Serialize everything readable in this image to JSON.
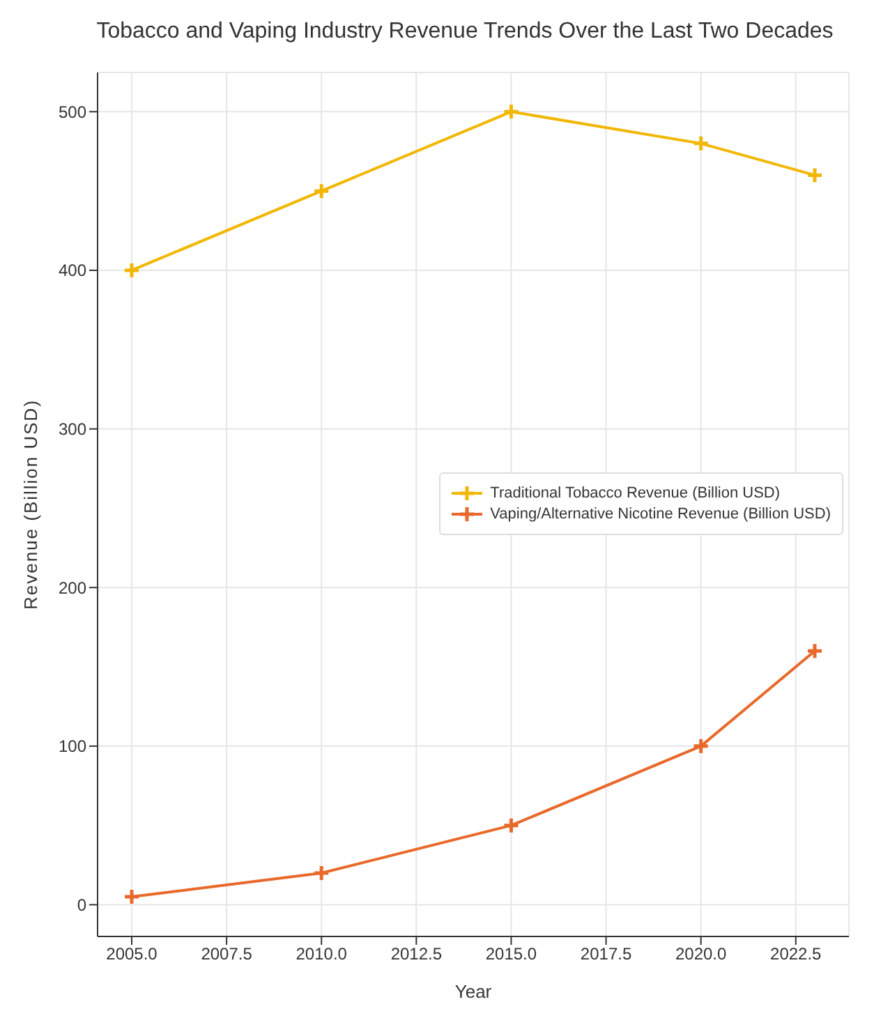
{
  "chart_data": {
    "type": "line",
    "title": "Tobacco and Vaping Industry Revenue Trends Over the Last Two Decades",
    "xlabel": "Year",
    "ylabel": "Revenue (Billion USD)",
    "x": [
      2005,
      2010,
      2015,
      2020,
      2023
    ],
    "series": [
      {
        "name": "Traditional Tobacco Revenue (Billion USD)",
        "color": "#f2b705",
        "values": [
          400,
          450,
          500,
          480,
          460
        ]
      },
      {
        "name": "Vaping/Alternative Nicotine Revenue (Billion USD)",
        "color": "#e8692a",
        "values": [
          5,
          20,
          50,
          100,
          160
        ]
      }
    ],
    "xlim": [
      2004.1,
      2023.9
    ],
    "xticks": [
      {
        "value": 2005,
        "label": "2005.0"
      },
      {
        "value": 2007.5,
        "label": "2007.5"
      },
      {
        "value": 2010,
        "label": "2010.0"
      },
      {
        "value": 2012.5,
        "label": "2012.5"
      },
      {
        "value": 2015,
        "label": "2015.0"
      },
      {
        "value": 2017.5,
        "label": "2017.5"
      },
      {
        "value": 2020,
        "label": "2020.0"
      },
      {
        "value": 2022.5,
        "label": "2022.5"
      }
    ],
    "ylim": [
      -20,
      524.75
    ],
    "yticks": [
      0,
      100,
      200,
      300,
      400,
      500
    ],
    "grid": true,
    "legend": "right",
    "marker": "cross",
    "line_style": "solid"
  }
}
